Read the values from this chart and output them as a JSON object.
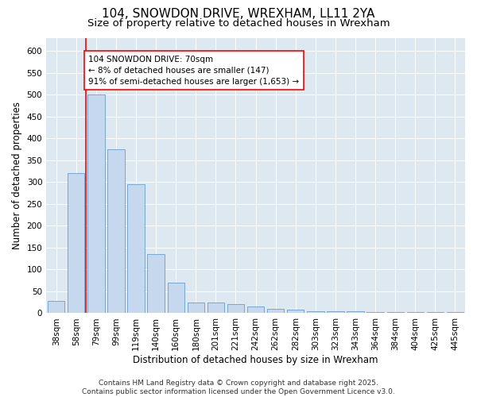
{
  "title": "104, SNOWDON DRIVE, WREXHAM, LL11 2YA",
  "subtitle": "Size of property relative to detached houses in Wrexham",
  "xlabel": "Distribution of detached houses by size in Wrexham",
  "ylabel": "Number of detached properties",
  "categories": [
    "38sqm",
    "58sqm",
    "79sqm",
    "99sqm",
    "119sqm",
    "140sqm",
    "160sqm",
    "180sqm",
    "201sqm",
    "221sqm",
    "242sqm",
    "262sqm",
    "282sqm",
    "303sqm",
    "323sqm",
    "343sqm",
    "364sqm",
    "384sqm",
    "404sqm",
    "425sqm",
    "445sqm"
  ],
  "values": [
    28,
    320,
    500,
    375,
    295,
    135,
    70,
    25,
    25,
    20,
    15,
    10,
    8,
    4,
    4,
    4,
    2,
    2,
    2,
    2,
    2
  ],
  "bar_color": "#c5d8ee",
  "bar_edge_color": "#6a9fcb",
  "vline_color": "red",
  "vline_x": 1.5,
  "annotation_text": "104 SNOWDON DRIVE: 70sqm\n← 8% of detached houses are smaller (147)\n91% of semi-detached houses are larger (1,653) →",
  "annotation_box_facecolor": "white",
  "annotation_box_edgecolor": "red",
  "ylim": [
    0,
    630
  ],
  "yticks": [
    0,
    50,
    100,
    150,
    200,
    250,
    300,
    350,
    400,
    450,
    500,
    550,
    600
  ],
  "background_color": "#dde8f0",
  "grid_color": "white",
  "footer": "Contains HM Land Registry data © Crown copyright and database right 2025.\nContains public sector information licensed under the Open Government Licence v3.0.",
  "title_fontsize": 11,
  "subtitle_fontsize": 9.5,
  "ylabel_fontsize": 8.5,
  "xlabel_fontsize": 8.5,
  "tick_fontsize": 7.5,
  "annotation_fontsize": 7.5,
  "footer_fontsize": 6.5
}
